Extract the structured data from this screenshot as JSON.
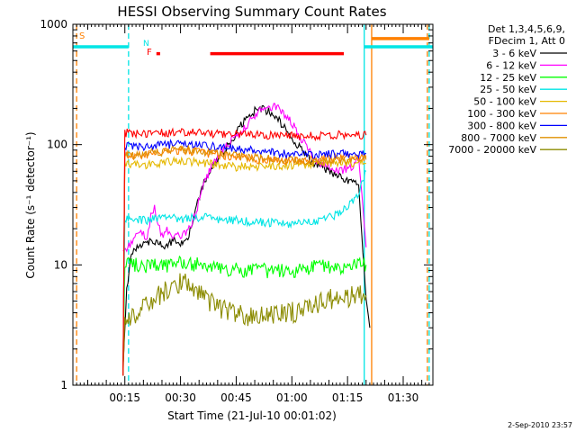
{
  "chart_data": {
    "type": "line",
    "title": "HESSI Observing Summary Count Rates",
    "xlabel": "Start Time (21-Jul-10 00:01:02)",
    "ylabel": "Count Rate (s⁻¹ detector⁻¹)",
    "y_scale": "log",
    "ylim": [
      1,
      1000
    ],
    "xlim_minutes": [
      0,
      97
    ],
    "x_ticks": [
      {
        "t": 14,
        "label": "00:15"
      },
      {
        "t": 29,
        "label": "00:30"
      },
      {
        "t": 44,
        "label": "00:45"
      },
      {
        "t": 59,
        "label": "01:00"
      },
      {
        "t": 74,
        "label": "01:15"
      },
      {
        "t": 89,
        "label": "01:30"
      }
    ],
    "y_ticks": [
      {
        "v": 1,
        "label": "1"
      },
      {
        "v": 10,
        "label": "10"
      },
      {
        "v": 100,
        "label": "100"
      },
      {
        "v": 1000,
        "label": "1000"
      }
    ],
    "legend_header": [
      "Det 1,3,4,5,6,9,",
      "FDecim 1, Att 0"
    ],
    "footer_date": "2-Sep-2010 23:57",
    "flags": {
      "S": "S",
      "N": "N",
      "F": "F"
    },
    "vertical_lines": [
      {
        "t": 1,
        "color": "#ff8000",
        "style": "dashed"
      },
      {
        "t": 15,
        "color": "#00e5e5",
        "style": "dashed"
      },
      {
        "t": 78.5,
        "color": "#00e5e5",
        "style": "solid"
      },
      {
        "t": 80.5,
        "color": "#ff8000",
        "style": "solid"
      },
      {
        "t": 95.5,
        "color": "#ff8000",
        "style": "dashed"
      },
      {
        "t": 96,
        "color": "#00e5e5",
        "style": "dashed"
      }
    ],
    "series": [
      {
        "name": "3 - 6 keV",
        "color": "#000000",
        "x": [
          13.5,
          14.5,
          15.5,
          17,
          19,
          21,
          23,
          25,
          27,
          29,
          31,
          33,
          35,
          37,
          39,
          41,
          43,
          45,
          47,
          49,
          51,
          53,
          55,
          57,
          59,
          61,
          63,
          65,
          67,
          69,
          71,
          73,
          75,
          77,
          79,
          80
        ],
        "y": [
          1.4,
          6,
          12,
          13.5,
          15,
          16,
          15,
          14,
          16,
          15,
          17,
          28,
          45,
          60,
          75,
          90,
          110,
          140,
          165,
          190,
          200,
          185,
          165,
          140,
          115,
          95,
          80,
          70,
          65,
          60,
          55,
          52,
          50,
          48,
          5,
          3
        ]
      },
      {
        "name": "6 - 12 keV",
        "color": "#ff00ff",
        "x": [
          13.5,
          14.5,
          16,
          17,
          18,
          19,
          20,
          21,
          22,
          23,
          24,
          25,
          26,
          27,
          28,
          29,
          31,
          33,
          35,
          37,
          39,
          41,
          43,
          45,
          47,
          49,
          51,
          53,
          55,
          57,
          59,
          61,
          63,
          65,
          67,
          69,
          71,
          73,
          75,
          77,
          79
        ],
        "y": [
          13,
          14,
          15,
          17,
          19,
          18,
          16,
          25,
          31,
          22,
          17,
          20,
          18,
          17,
          18,
          17,
          19,
          26,
          45,
          62,
          80,
          95,
          110,
          125,
          145,
          175,
          195,
          210,
          200,
          180,
          150,
          118,
          95,
          78,
          68,
          65,
          60,
          62,
          65,
          80,
          14
        ]
      },
      {
        "name": "12 - 25 keV",
        "color": "#00ff00",
        "x": [
          13.5,
          14,
          17,
          20,
          23,
          26,
          29,
          32,
          35,
          38,
          41,
          44,
          47,
          50,
          53,
          56,
          59,
          62,
          65,
          68,
          71,
          74,
          77,
          79
        ],
        "y": [
          1.2,
          10,
          10,
          9.6,
          10,
          9.8,
          10.4,
          10,
          10.2,
          9.4,
          9,
          9.2,
          9,
          9.2,
          8.8,
          9,
          8.9,
          9.3,
          9.6,
          9.8,
          9.4,
          9.8,
          10,
          10
        ]
      },
      {
        "name": "25 - 50 keV",
        "color": "#00e5e5",
        "x": [
          13.5,
          14,
          17,
          20,
          23,
          26,
          29,
          32,
          35,
          38,
          41,
          44,
          47,
          50,
          53,
          56,
          59,
          62,
          65,
          68,
          71,
          74,
          77,
          79
        ],
        "y": [
          1.2,
          24,
          24,
          23.5,
          24.5,
          25,
          24,
          24.5,
          25,
          24,
          23.5,
          23.5,
          23,
          22.8,
          22.5,
          22,
          22,
          22.5,
          23,
          24,
          26,
          30,
          40,
          60
        ]
      },
      {
        "name": "50 - 100 keV",
        "color": "#e5b800",
        "x": [
          13.5,
          14,
          17,
          20,
          23,
          26,
          29,
          32,
          35,
          38,
          41,
          44,
          47,
          50,
          53,
          56,
          59,
          62,
          65,
          68,
          71,
          74,
          77,
          79
        ],
        "y": [
          1.2,
          70,
          68,
          68,
          70,
          72,
          74,
          72,
          70,
          68,
          66,
          65,
          65,
          66,
          67,
          67,
          67,
          68,
          69,
          70,
          70,
          70,
          70,
          70
        ]
      },
      {
        "name": "100 - 300 keV",
        "color": "#ff8000",
        "x": [
          13.5,
          14,
          17,
          20,
          23,
          26,
          29,
          32,
          35,
          38,
          41,
          44,
          47,
          50,
          53,
          56,
          59,
          62,
          65,
          68,
          71,
          74,
          77,
          79
        ],
        "y": [
          1.2,
          82,
          80,
          82,
          84,
          88,
          90,
          88,
          85,
          82,
          80,
          78,
          76,
          75,
          75,
          74,
          74,
          74,
          75,
          76,
          77,
          78,
          78,
          78
        ]
      },
      {
        "name": "300 - 800 keV",
        "color": "#0000ff",
        "x": [
          13.5,
          14,
          17,
          20,
          23,
          26,
          29,
          32,
          35,
          38,
          41,
          44,
          47,
          50,
          53,
          56,
          59,
          62,
          65,
          68,
          71,
          74,
          77,
          79
        ],
        "y": [
          1.2,
          98,
          97,
          96,
          98,
          100,
          102,
          100,
          98,
          96,
          94,
          92,
          90,
          88,
          86,
          84,
          83,
          82,
          82,
          83,
          84,
          84,
          84,
          84
        ]
      },
      {
        "name": "800 - 7000 keV",
        "color": "#e09000",
        "x": [
          13.5,
          14,
          17,
          20,
          23,
          26,
          29,
          32,
          35,
          38,
          41,
          44,
          47,
          50,
          53,
          56,
          59,
          62,
          65,
          68,
          71,
          74,
          77,
          79
        ],
        "y": [
          1.2,
          84,
          82,
          84,
          86,
          90,
          92,
          90,
          86,
          84,
          82,
          80,
          78,
          77,
          76,
          75,
          74,
          73,
          73,
          73,
          74,
          74,
          75,
          75
        ]
      },
      {
        "name": "7000 - 20000 keV",
        "color": "#8b8b00",
        "x": [
          13.5,
          14,
          16,
          18,
          20,
          22,
          24,
          26,
          28,
          30,
          32,
          34,
          36,
          38,
          40,
          42,
          44,
          46,
          48,
          50,
          52,
          54,
          56,
          58,
          60,
          62,
          64,
          66,
          68,
          70,
          72,
          74,
          76,
          78,
          79
        ],
        "y": [
          1.2,
          3.5,
          3.7,
          4.2,
          4.8,
          5.4,
          5.8,
          6.4,
          7.2,
          7,
          6.5,
          5.8,
          5.2,
          4.8,
          4.4,
          4.1,
          3.9,
          3.7,
          3.7,
          3.8,
          3.7,
          3.8,
          3.9,
          3.9,
          4.1,
          4.3,
          4.6,
          4.8,
          5,
          5.2,
          5.3,
          5.4,
          5.5,
          5.6,
          5.6
        ]
      },
      {
        "name": "",
        "color": "#ff0000",
        "x": [
          13.5,
          14,
          17,
          20,
          23,
          26,
          29,
          32,
          35,
          38,
          41,
          44,
          47,
          50,
          53,
          56,
          59,
          62,
          65,
          68,
          71,
          74,
          77,
          79
        ],
        "y": [
          1.2,
          125,
          124,
          123,
          124,
          126,
          128,
          126,
          124,
          123,
          122,
          121,
          120,
          120,
          119,
          118,
          118,
          117,
          118,
          119,
          120,
          120,
          120,
          120
        ]
      }
    ],
    "status_bars": [
      {
        "label": "saa",
        "color": "#00e5e5",
        "segments": [
          [
            0,
            15
          ],
          [
            78.5,
            97
          ]
        ],
        "level": 650
      },
      {
        "label": "flare",
        "color": "#ff0000",
        "segments": [
          [
            22.5,
            23.5
          ],
          [
            37,
            73
          ]
        ],
        "level": 570
      },
      {
        "label": "night",
        "color": "#ff8000",
        "segments": [
          [
            80.5,
            96
          ]
        ],
        "level": 760
      }
    ]
  }
}
